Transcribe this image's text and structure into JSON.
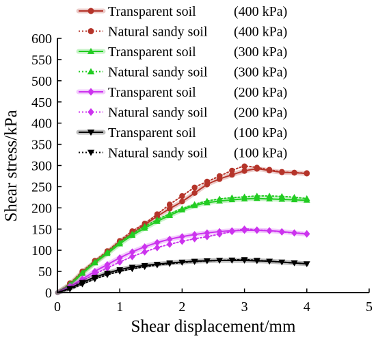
{
  "chart_data": {
    "type": "line",
    "xlabel": "Shear displacement/mm",
    "ylabel": "Shear stress/kPa",
    "xlim": [
      0,
      5
    ],
    "ylim": [
      0,
      600
    ],
    "x_ticks": [
      0,
      1,
      2,
      3,
      4,
      5
    ],
    "y_ticks": [
      0,
      50,
      100,
      150,
      200,
      250,
      300,
      350,
      400,
      450,
      500,
      550,
      600
    ],
    "x_tick_labels": [
      "0",
      "1",
      "2",
      "3",
      "4",
      "5"
    ],
    "y_tick_labels": [
      "0",
      "50",
      "100",
      "150",
      "200",
      "250",
      "300",
      "350",
      "400",
      "450",
      "500",
      "550",
      "600"
    ],
    "grid": false,
    "legend_position": "top-left",
    "series": [
      {
        "name": "Transparent soil",
        "pressure": "(400 kPa)",
        "color": "#b5342a",
        "marker": "circle",
        "line_style": "solid",
        "x": [
          0,
          0.2,
          0.4,
          0.6,
          0.8,
          1.0,
          1.2,
          1.4,
          1.6,
          1.8,
          2.0,
          2.2,
          2.4,
          2.6,
          2.8,
          3.0,
          3.2,
          3.4,
          3.6,
          3.8,
          4.0
        ],
        "y": [
          0,
          20,
          48,
          72,
          95,
          120,
          140,
          160,
          180,
          198,
          215,
          235,
          255,
          268,
          278,
          287,
          292,
          288,
          284,
          283,
          281
        ]
      },
      {
        "name": "Natural sandy soil",
        "pressure": "(400 kPa)",
        "color": "#b5342a",
        "marker": "circle",
        "line_style": "dotted",
        "x": [
          0,
          0.2,
          0.4,
          0.6,
          0.8,
          1.0,
          1.2,
          1.4,
          1.6,
          1.8,
          2.0,
          2.2,
          2.4,
          2.6,
          2.8,
          3.0,
          3.2,
          3.4,
          3.6,
          3.8,
          4.0
        ],
        "y": [
          0,
          22,
          50,
          75,
          98,
          122,
          145,
          163,
          185,
          208,
          228,
          248,
          262,
          275,
          288,
          298,
          295,
          290,
          285,
          283,
          282
        ]
      },
      {
        "name": "Transparent soil",
        "pressure": "(300 kPa)",
        "color": "#22cc22",
        "marker": "triangle-up",
        "line_style": "solid",
        "x": [
          0,
          0.2,
          0.4,
          0.6,
          0.8,
          1.0,
          1.2,
          1.4,
          1.6,
          1.8,
          2.0,
          2.2,
          2.4,
          2.6,
          2.8,
          3.0,
          3.2,
          3.4,
          3.6,
          3.8,
          4.0
        ],
        "y": [
          0,
          18,
          45,
          70,
          92,
          115,
          135,
          152,
          168,
          182,
          195,
          205,
          212,
          216,
          219,
          221,
          222,
          221,
          220,
          219,
          218
        ]
      },
      {
        "name": "Natural sandy soil",
        "pressure": "(300 kPa)",
        "color": "#22cc22",
        "marker": "triangle-up",
        "line_style": "dotted",
        "x": [
          0,
          0.2,
          0.4,
          0.6,
          0.8,
          1.0,
          1.2,
          1.4,
          1.6,
          1.8,
          2.0,
          2.2,
          2.4,
          2.6,
          2.8,
          3.0,
          3.2,
          3.4,
          3.6,
          3.8,
          4.0
        ],
        "y": [
          0,
          20,
          47,
          72,
          95,
          118,
          138,
          156,
          172,
          186,
          198,
          208,
          216,
          221,
          224,
          226,
          228,
          228,
          227,
          225,
          222
        ]
      },
      {
        "name": "Transparent soil",
        "pressure": "(200 kPa)",
        "color": "#cc33ee",
        "marker": "diamond",
        "line_style": "solid",
        "x": [
          0,
          0.2,
          0.4,
          0.6,
          0.8,
          1.0,
          1.2,
          1.4,
          1.6,
          1.8,
          2.0,
          2.2,
          2.4,
          2.6,
          2.8,
          3.0,
          3.2,
          3.4,
          3.6,
          3.8,
          4.0
        ],
        "y": [
          0,
          15,
          32,
          50,
          66,
          82,
          96,
          108,
          118,
          126,
          132,
          137,
          141,
          144,
          146,
          147,
          147,
          146,
          144,
          141,
          138
        ]
      },
      {
        "name": "Natural sandy soil",
        "pressure": "(200 kPa)",
        "color": "#cc33ee",
        "marker": "diamond",
        "line_style": "dotted",
        "x": [
          0,
          0.2,
          0.4,
          0.6,
          0.8,
          1.0,
          1.2,
          1.4,
          1.6,
          1.8,
          2.0,
          2.2,
          2.4,
          2.6,
          2.8,
          3.0,
          3.2,
          3.4,
          3.6,
          3.8,
          4.0
        ],
        "y": [
          0,
          12,
          28,
          44,
          58,
          72,
          85,
          96,
          106,
          114,
          121,
          127,
          132,
          138,
          144,
          150,
          148,
          146,
          143,
          141,
          139
        ]
      },
      {
        "name": "Transparent soil",
        "pressure": "(100 kPa)",
        "color": "#000000",
        "marker": "triangle-down",
        "line_style": "solid",
        "x": [
          0,
          0.2,
          0.4,
          0.6,
          0.8,
          1.0,
          1.2,
          1.4,
          1.6,
          1.8,
          2.0,
          2.2,
          2.4,
          2.6,
          2.8,
          3.0,
          3.2,
          3.4,
          3.6,
          3.8,
          4.0
        ],
        "y": [
          0,
          10,
          24,
          36,
          46,
          54,
          60,
          64,
          67,
          70,
          72,
          74,
          75,
          76,
          76,
          76,
          75,
          74,
          72,
          70,
          68
        ]
      },
      {
        "name": "Natural sandy soil",
        "pressure": "(100 kPa)",
        "color": "#000000",
        "marker": "triangle-down",
        "line_style": "dotted",
        "x": [
          0,
          0.2,
          0.4,
          0.6,
          0.8,
          1.0,
          1.2,
          1.4,
          1.6,
          1.8,
          2.0,
          2.2,
          2.4,
          2.6,
          2.8,
          3.0,
          3.2,
          3.4,
          3.6,
          3.8,
          4.0
        ],
        "y": [
          0,
          8,
          20,
          32,
          42,
          50,
          56,
          61,
          65,
          68,
          71,
          73,
          75,
          76,
          77,
          78,
          76,
          74,
          72,
          70,
          68
        ]
      }
    ]
  }
}
